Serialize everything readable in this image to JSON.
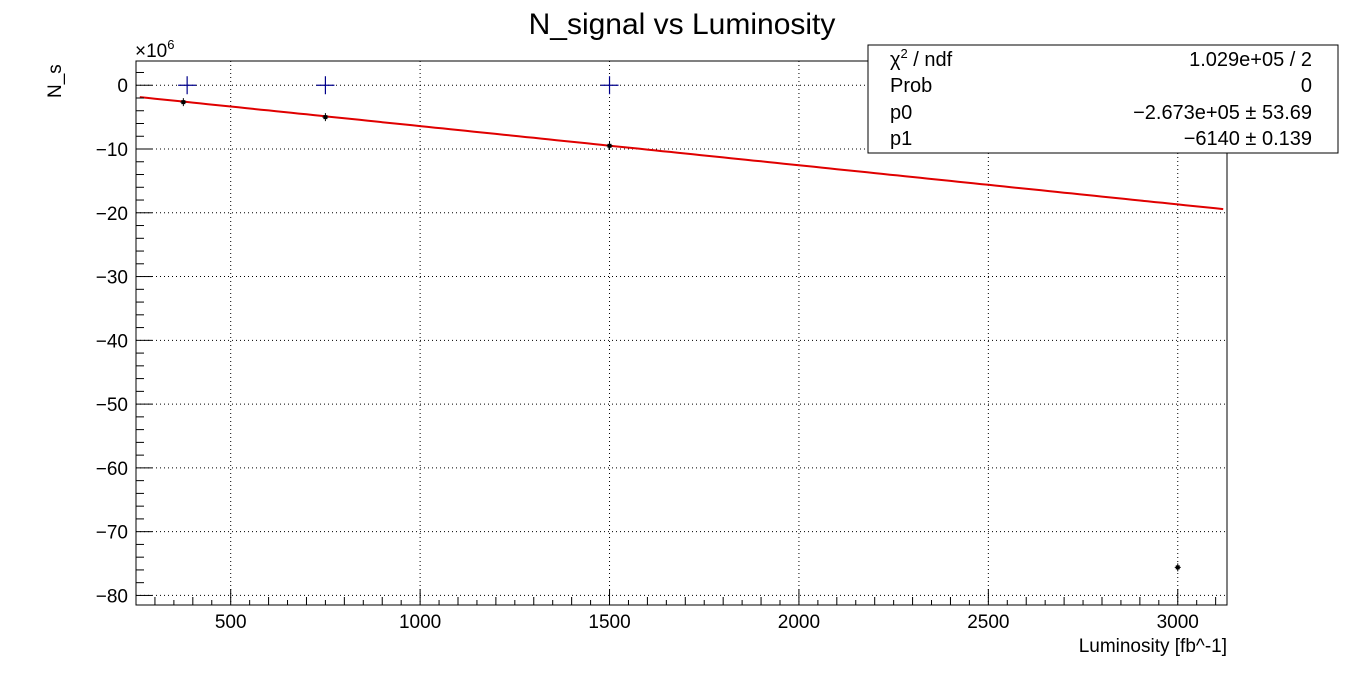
{
  "chart_data": {
    "type": "scatter",
    "title": "N_signal vs Luminosity",
    "xlabel": "Luminosity [fb^-1]",
    "ylabel": "N_s",
    "y_multiplier": "×10",
    "y_multiplier_exp": "6",
    "xlim": [
      250,
      3130
    ],
    "ylim": [
      -81.5,
      3.8
    ],
    "grid": true,
    "x_ticks": [
      500,
      1000,
      1500,
      2000,
      2500,
      3000
    ],
    "y_ticks": [
      0,
      -10,
      -20,
      -30,
      -40,
      -50,
      -60,
      -70,
      -80
    ],
    "x_tick_labels": [
      "500",
      "1000",
      "1500",
      "2000",
      "2500",
      "3000"
    ],
    "y_tick_labels": [
      "0",
      "−10",
      "−20",
      "−30",
      "−40",
      "−50",
      "−60",
      "−70",
      "−80"
    ],
    "series": [
      {
        "kind": "data_points_with_errors",
        "color": "#000000",
        "x": [
          375,
          750,
          1500,
          3000
        ],
        "y": [
          -2.65,
          -5.0,
          -9.5,
          -75.6
        ]
      },
      {
        "kind": "cross_markers",
        "color": "#00008b",
        "x": [
          385,
          750,
          1500
        ],
        "y": [
          0,
          0,
          0
        ]
      },
      {
        "kind": "fit_line",
        "color": "#e00000",
        "p0": -0.2673,
        "p1": -0.00614,
        "x_range": [
          260,
          3120
        ]
      }
    ],
    "stats_box": {
      "position": "top-right",
      "rows": [
        {
          "label_main": "χ",
          "label_sup": "2",
          "label_rest": " / ndf",
          "value": "1.029e+05 / 2"
        },
        {
          "label_main": "Prob",
          "label_sup": "",
          "label_rest": "",
          "value": "0"
        },
        {
          "label_main": "p0",
          "label_sup": "",
          "label_rest": "",
          "value": "−2.673e+05 ± 53.69"
        },
        {
          "label_main": "p1",
          "label_sup": "",
          "label_rest": "",
          "value": "−6140 ± 0.139"
        }
      ]
    }
  }
}
